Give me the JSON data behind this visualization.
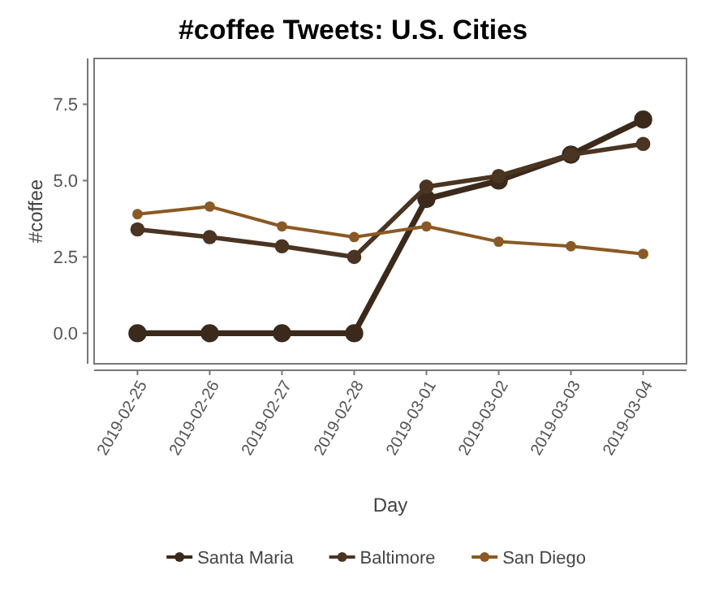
{
  "chart_data": {
    "type": "line",
    "title": "#coffee Tweets: U.S. Cities",
    "xlabel": "Day",
    "ylabel": "#coffee",
    "categories": [
      "2019-02-25",
      "2019-02-26",
      "2019-02-27",
      "2019-02-28",
      "2019-03-01",
      "2019-03-02",
      "2019-03-03",
      "2019-03-04"
    ],
    "series": [
      {
        "name": "Santa Maria",
        "color": "#3b2a1c",
        "values": [
          0,
          0,
          0,
          0,
          4.4,
          5.0,
          5.85,
          7.0
        ]
      },
      {
        "name": "Baltimore",
        "color": "#4a3422",
        "values": [
          3.4,
          3.15,
          2.85,
          2.5,
          4.8,
          5.15,
          5.85,
          6.2
        ]
      },
      {
        "name": "San Diego",
        "color": "#8a5a24",
        "values": [
          3.9,
          4.15,
          3.5,
          3.15,
          3.5,
          3.0,
          2.85,
          2.6
        ]
      }
    ],
    "ylim": [
      -1.0,
      9.0
    ],
    "yticks": [
      {
        "value": 0,
        "label": "0.0"
      },
      {
        "value": 2.5,
        "label": "2.5"
      },
      {
        "value": 5,
        "label": "5.0"
      },
      {
        "value": 7.5,
        "label": "7.5"
      }
    ],
    "grid": false,
    "legend": "bottom",
    "marker": "circle",
    "line_style": "solid"
  }
}
